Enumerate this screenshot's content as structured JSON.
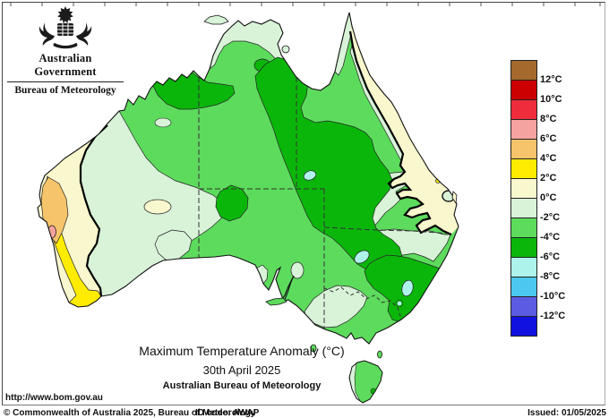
{
  "map": {
    "region": "Australia",
    "variable": "Maximum Temperature Anomaly",
    "unit": "°C",
    "date": "30th April 2025"
  },
  "logo": {
    "title": "Australian Government",
    "subtitle": "Bureau of Meteorology"
  },
  "title": {
    "line1": "Maximum Temperature Anomaly (°C)",
    "line2": "30th April 2025",
    "line3": "Australian Bureau of Meteorology"
  },
  "legend": {
    "labels": [
      "12°C",
      "10°C",
      "8°C",
      "6°C",
      "4°C",
      "2°C",
      "0°C",
      "-2°C",
      "-4°C",
      "-6°C",
      "-8°C",
      "-10°C",
      "-12°C"
    ],
    "colors": [
      "#a5692d",
      "#cc0000",
      "#ee2c3c",
      "#f5a3a0",
      "#f6c46a",
      "#ffec00",
      "#f9f7cd",
      "#d8f3d8",
      "#5ddb5d",
      "#0bb60b",
      "#aef2ec",
      "#4cc8ee",
      "#5c5ce2",
      "#1212e0"
    ]
  },
  "footer": {
    "url": "http://www.bom.gov.au",
    "copyright": "© Commonwealth of Australia 2025, Bureau of Meteorology",
    "id_code": "ID code: AWAP",
    "issued": "Issued: 01/05/2025"
  }
}
